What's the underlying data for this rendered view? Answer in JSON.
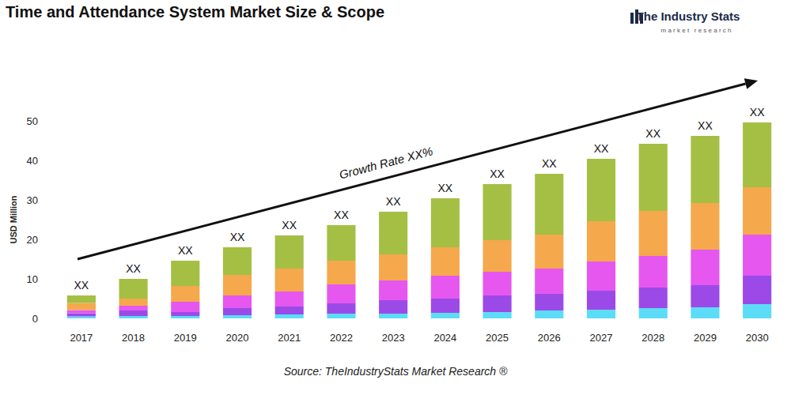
{
  "chart_data": {
    "type": "bar",
    "title": "Time and Attendance System Market Size & Scope",
    "brand": "The Industry Stats",
    "brand_subtitle": "market research",
    "source": "Source: TheIndustryStats Market Research ®",
    "y_label": "USD Million",
    "annotation": "Growth Rate XX%",
    "categories": [
      "2017",
      "2018",
      "2019",
      "2020",
      "2021",
      "2022",
      "2023",
      "2024",
      "2025",
      "2026",
      "2027",
      "2028",
      "2029",
      "2030"
    ],
    "series": [
      {
        "color": "#5cdcf7",
        "values": [
          0.5,
          0.6,
          0.6,
          0.8,
          1.0,
          1.2,
          1.2,
          1.4,
          1.6,
          2.0,
          2.2,
          2.6,
          2.8,
          3.6
        ]
      },
      {
        "color": "#9b4ae8",
        "values": [
          0.8,
          1.4,
          1.0,
          1.8,
          2.0,
          2.6,
          3.4,
          3.6,
          4.2,
          4.2,
          4.8,
          5.2,
          5.6,
          7.2
        ]
      },
      {
        "color": "#e557ef",
        "values": [
          0.8,
          1.2,
          2.6,
          3.2,
          3.8,
          4.8,
          5.0,
          5.8,
          6.0,
          6.4,
          7.4,
          8.0,
          9.0,
          10.4
        ]
      },
      {
        "color": "#f5a84c",
        "values": [
          1.8,
          1.8,
          4.0,
          5.2,
          5.8,
          6.0,
          6.6,
          7.2,
          8.0,
          8.6,
          10.2,
          11.4,
          11.8,
          12.0
        ]
      },
      {
        "color": "#a4bf44",
        "values": [
          1.9,
          5.0,
          6.4,
          7.0,
          8.4,
          9.0,
          10.8,
          12.4,
          14.2,
          15.4,
          15.8,
          17.0,
          17.0,
          16.4
        ]
      }
    ],
    "total_labels": [
      "XX",
      "XX",
      "XX",
      "XX",
      "XX",
      "XX",
      "XX",
      "XX",
      "XX",
      "XX",
      "XX",
      "XX",
      "XX",
      "XX"
    ],
    "stacked": true,
    "ylim": [
      0,
      50
    ],
    "yticks": [
      0,
      10,
      20,
      30,
      40,
      50
    ],
    "grid": false
  }
}
